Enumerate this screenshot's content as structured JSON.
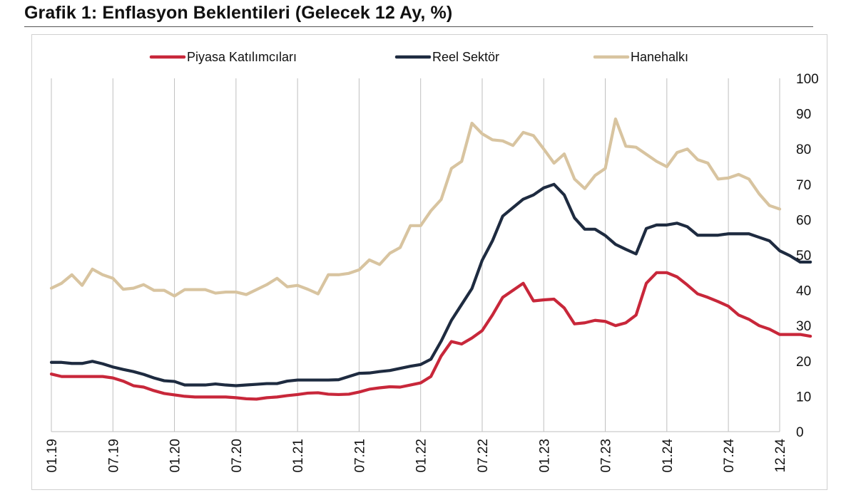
{
  "header": {
    "title": "Grafik 1: Enflasyon Beklentileri (Gelecek 12 Ay, %)"
  },
  "chart_data": {
    "type": "line",
    "title": "Grafik 1: Enflasyon Beklentileri (Gelecek 12 Ay, %)",
    "xlabel": "",
    "ylabel": "",
    "ylim": [
      0,
      100
    ],
    "yticks": [
      "0",
      "10",
      "20",
      "30",
      "40",
      "50",
      "60",
      "70",
      "80",
      "90",
      "100"
    ],
    "grid": "vertical",
    "legend_position": "top",
    "x_tick_labels": [
      "01.19",
      "07.19",
      "01.20",
      "07.20",
      "01.21",
      "07.21",
      "01.22",
      "07.22",
      "01.23",
      "07.23",
      "01.24",
      "07.24",
      "12.24"
    ],
    "x_start": "2019-01",
    "x_end": "2024-12",
    "series": [
      {
        "name": "Piyasa Katılımcıları",
        "color": "#c8273a",
        "values": [
          16.3,
          15.6,
          15.6,
          15.6,
          15.6,
          15.6,
          15.2,
          14.3,
          13.0,
          12.6,
          11.6,
          10.8,
          10.4,
          10.0,
          9.8,
          9.8,
          9.8,
          9.8,
          9.6,
          9.3,
          9.2,
          9.6,
          9.8,
          10.2,
          10.5,
          10.9,
          11.0,
          10.6,
          10.5,
          10.6,
          11.2,
          12.0,
          12.4,
          12.7,
          12.6,
          13.2,
          13.8,
          15.6,
          21.4,
          25.5,
          24.8,
          26.5,
          28.6,
          33.0,
          38.0,
          40.0,
          42.0,
          37.0,
          37.3,
          37.5,
          35.0,
          30.5,
          30.8,
          31.5,
          31.2,
          30.0,
          30.8,
          33.0,
          42.0,
          45.0,
          45.0,
          43.8,
          41.5,
          39.0,
          38.0,
          36.8,
          35.5,
          33.0,
          31.8,
          30.0,
          29.0,
          27.5,
          27.5,
          27.5,
          27.0
        ]
      },
      {
        "name": "Reel Sektör",
        "color": "#1e2b40",
        "values": [
          19.6,
          19.6,
          19.3,
          19.3,
          19.9,
          19.2,
          18.3,
          17.6,
          17.0,
          16.2,
          15.2,
          14.4,
          14.2,
          13.2,
          13.2,
          13.2,
          13.5,
          13.2,
          13.0,
          13.2,
          13.4,
          13.6,
          13.6,
          14.3,
          14.6,
          14.6,
          14.6,
          14.6,
          14.7,
          15.6,
          16.5,
          16.6,
          17.0,
          17.3,
          17.9,
          18.5,
          19.0,
          20.5,
          25.6,
          31.5,
          36.0,
          40.5,
          48.5,
          54.0,
          61.0,
          63.4,
          65.8,
          67.0,
          69.0,
          70.0,
          67.0,
          60.5,
          57.3,
          57.3,
          55.5,
          53.0,
          51.6,
          50.3,
          57.5,
          58.5,
          58.5,
          59.0,
          58.0,
          55.6,
          55.6,
          55.6,
          56.0,
          56.0,
          56.0,
          55.0,
          54.0,
          51.2,
          49.8,
          48.0,
          48.0
        ]
      },
      {
        "name": "Hanehalkı",
        "color": "#d8c4a0",
        "values": [
          40.6,
          42.0,
          44.4,
          41.4,
          46.0,
          44.4,
          43.4,
          40.3,
          40.6,
          41.6,
          40.0,
          40.0,
          38.4,
          40.2,
          40.2,
          40.2,
          39.2,
          39.5,
          39.5,
          38.8,
          40.2,
          41.6,
          43.4,
          41.0,
          41.4,
          40.3,
          39.0,
          44.4,
          44.4,
          44.8,
          45.8,
          48.6,
          47.3,
          50.5,
          52.1,
          58.3,
          58.3,
          62.5,
          65.7,
          74.5,
          76.5,
          87.3,
          84.3,
          82.6,
          82.3,
          81.0,
          84.7,
          83.8,
          80.0,
          76.0,
          78.6,
          71.5,
          68.8,
          72.5,
          74.5,
          88.5,
          80.8,
          80.5,
          78.5,
          76.5,
          75.0,
          79.0,
          80.0,
          77.0,
          76.0,
          71.5,
          71.8,
          72.8,
          71.5,
          67.3,
          64.0,
          63.0
        ]
      }
    ]
  }
}
